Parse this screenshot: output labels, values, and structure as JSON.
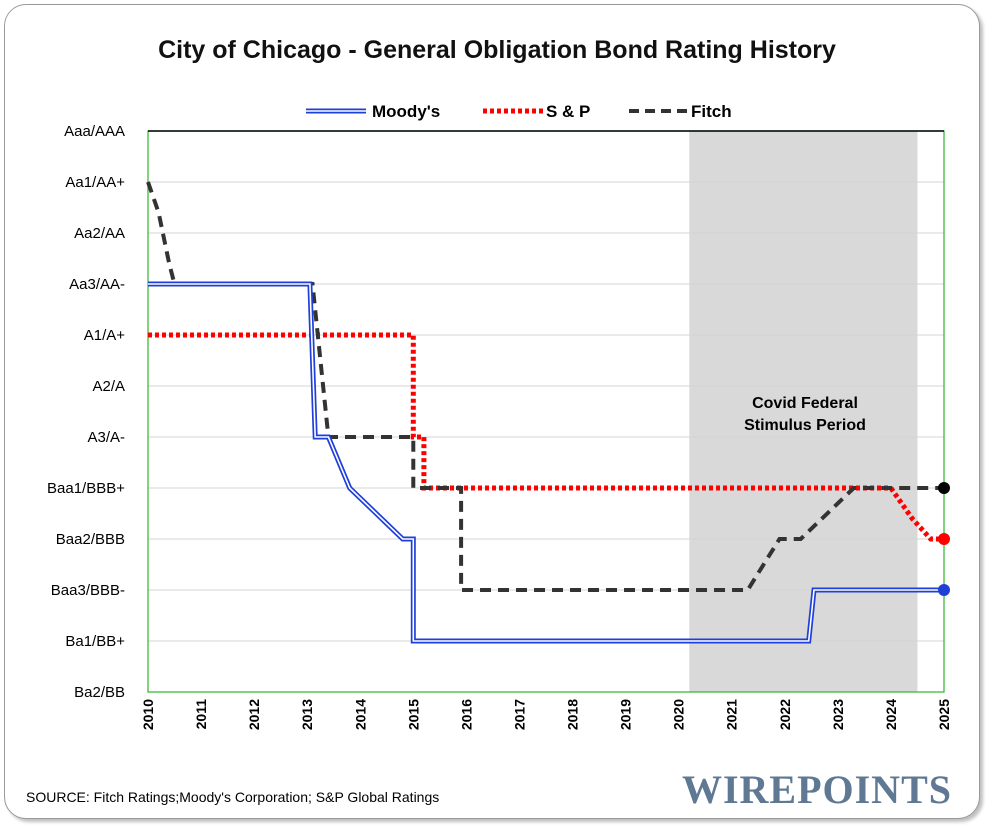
{
  "chart_data": {
    "type": "line",
    "title": "City of Chicago - General Obligation Bond Rating History",
    "y_categories": [
      "Aaa/AAA",
      "Aa1/AA+",
      "Aa2/AA",
      "Aa3/AA-",
      "A1/A+",
      "A2/A",
      "A3/A-",
      "Baa1/BBB+",
      "Baa2/BBB",
      "Baa3/BBB-",
      "Ba1/BB+",
      "Ba2/BB"
    ],
    "x_ticks": [
      "2010",
      "2011",
      "2012",
      "2013",
      "2014",
      "2015",
      "2016",
      "2017",
      "2018",
      "2019",
      "2020",
      "2021",
      "2022",
      "2023",
      "2024",
      "2025"
    ],
    "xlim": [
      2010,
      2025
    ],
    "grid": true,
    "legend_position": "top",
    "shaded_region": {
      "x": [
        2020.2,
        2024.5
      ],
      "label_line1": "Covid Federal",
      "label_line2": "Stimulus Period",
      "color": "#d9d9d9"
    },
    "series": [
      {
        "name": "Moody's",
        "color": "#1f3fd8",
        "style": "double",
        "points": [
          [
            2010,
            3
          ],
          [
            2013.05,
            3
          ],
          [
            2013.15,
            6
          ],
          [
            2013.4,
            6
          ],
          [
            2013.8,
            7
          ],
          [
            2014.8,
            8
          ],
          [
            2015.0,
            8
          ],
          [
            2015.0,
            10
          ],
          [
            2022.45,
            10
          ],
          [
            2022.55,
            9
          ],
          [
            2025,
            9
          ]
        ],
        "end_marker": true
      },
      {
        "name": "S & P",
        "color": "#ff0000",
        "style": "dotted",
        "points": [
          [
            2010,
            4
          ],
          [
            2015.0,
            4
          ],
          [
            2015.0,
            6
          ],
          [
            2015.2,
            6
          ],
          [
            2015.2,
            7
          ],
          [
            2024.0,
            7
          ],
          [
            2024.4,
            7.6
          ],
          [
            2024.75,
            8
          ],
          [
            2025,
            8
          ]
        ],
        "end_marker": true
      },
      {
        "name": "Fitch",
        "color": "#333333",
        "style": "dashed",
        "points": [
          [
            2010,
            1
          ],
          [
            2010.2,
            1.6
          ],
          [
            2010.4,
            2.6
          ],
          [
            2010.5,
            3
          ],
          [
            2013.1,
            3
          ],
          [
            2013.4,
            6
          ],
          [
            2015.0,
            6
          ],
          [
            2015.0,
            7
          ],
          [
            2015.9,
            7
          ],
          [
            2015.9,
            9
          ],
          [
            2021.3,
            9
          ],
          [
            2021.9,
            8
          ],
          [
            2022.3,
            8
          ],
          [
            2023.3,
            7
          ],
          [
            2025,
            7
          ]
        ],
        "end_marker": true
      }
    ]
  },
  "source_text": "SOURCE: Fitch Ratings;Moody's Corporation; S&P Global Ratings",
  "logo_text": "WIREPOINTS",
  "colors": {
    "plot_border": "#2db52d",
    "grid": "#d4d4d4",
    "background": "#ffffff"
  }
}
